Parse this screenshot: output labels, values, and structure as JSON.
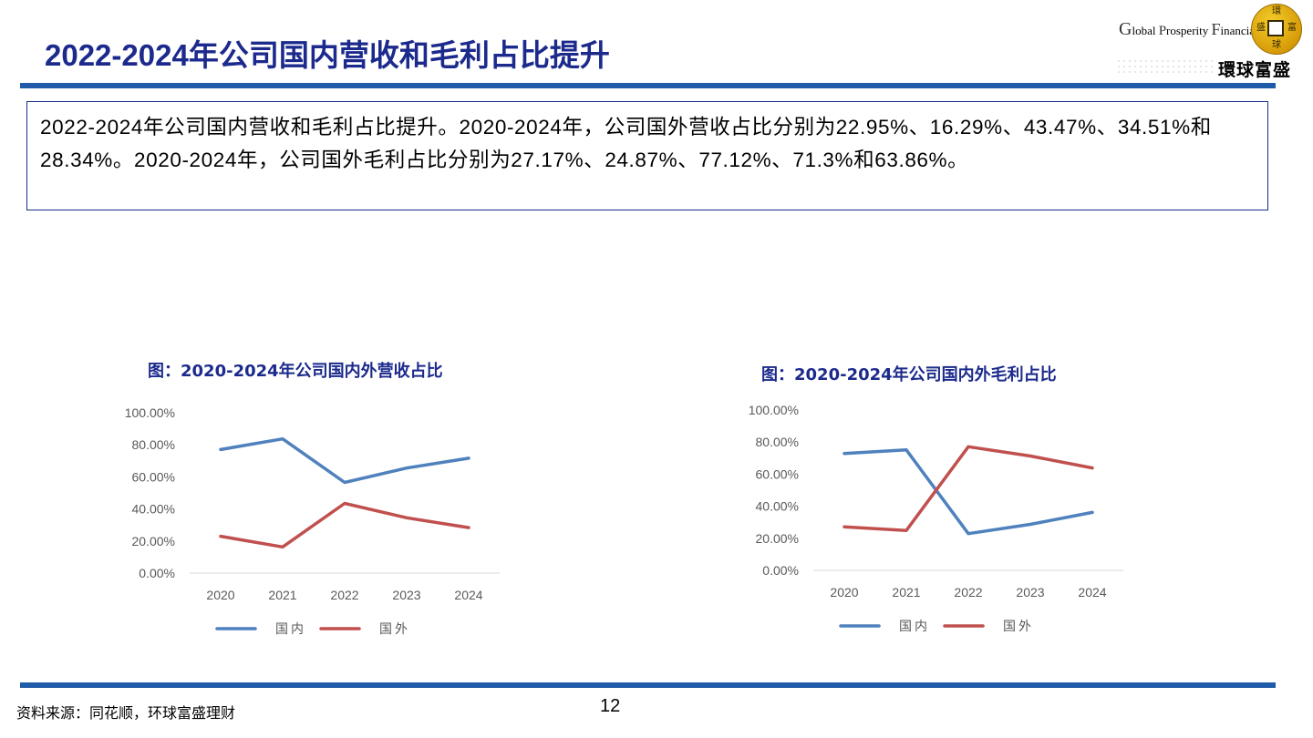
{
  "slide": {
    "title": "2022-2024年公司国内营收和毛利占比提升",
    "summary": "2022-2024年公司国内营收和毛利占比提升。2020-2024年，公司国外营收占比分别为22.95%、16.29%、43.47%、34.51%和28.34%。2020-2024年，公司国外毛利占比分别为27.17%、24.87%、77.12%、71.3%和63.86%。",
    "source": "资料来源：同花顺，环球富盛理财",
    "page_number": "12"
  },
  "logo": {
    "en_g": "G",
    "en_lobal": "lobal ",
    "en_p": "P",
    "en_rosperity": "rosperity ",
    "en_f": "F",
    "en_inancial": "inancial",
    "cn": "環球富盛",
    "coin_chars": [
      "環",
      "球",
      "富",
      "盛"
    ]
  },
  "colors": {
    "title": "#1b2a8c",
    "domestic": "#4f81bd",
    "foreign": "#c0504d",
    "bar": "#1f5ba8"
  },
  "chart_data": [
    {
      "type": "line",
      "title": "图：2020-2024年公司国内外营收占比",
      "categories": [
        "2020",
        "2021",
        "2022",
        "2023",
        "2024"
      ],
      "ylim": [
        0,
        100
      ],
      "y_ticks": [
        "0.00%",
        "20.00%",
        "40.00%",
        "60.00%",
        "80.00%",
        "100.00%"
      ],
      "series": [
        {
          "name": "国内",
          "color": "#4f81bd",
          "values": [
            77.05,
            83.71,
            56.53,
            65.49,
            71.66
          ]
        },
        {
          "name": "国外",
          "color": "#c0504d",
          "values": [
            22.95,
            16.29,
            43.47,
            34.51,
            28.34
          ]
        }
      ],
      "legend": "bottom"
    },
    {
      "type": "line",
      "title": "图：2020-2024年公司国内外毛利占比",
      "categories": [
        "2020",
        "2021",
        "2022",
        "2023",
        "2024"
      ],
      "ylim": [
        0,
        100
      ],
      "y_ticks": [
        "0.00%",
        "20.00%",
        "40.00%",
        "60.00%",
        "80.00%",
        "100.00%"
      ],
      "series": [
        {
          "name": "国内",
          "color": "#4f81bd",
          "values": [
            72.83,
            75.13,
            22.88,
            28.7,
            36.14
          ]
        },
        {
          "name": "国外",
          "color": "#c0504d",
          "values": [
            27.17,
            24.87,
            77.12,
            71.3,
            63.86
          ]
        }
      ],
      "legend": "bottom"
    }
  ]
}
